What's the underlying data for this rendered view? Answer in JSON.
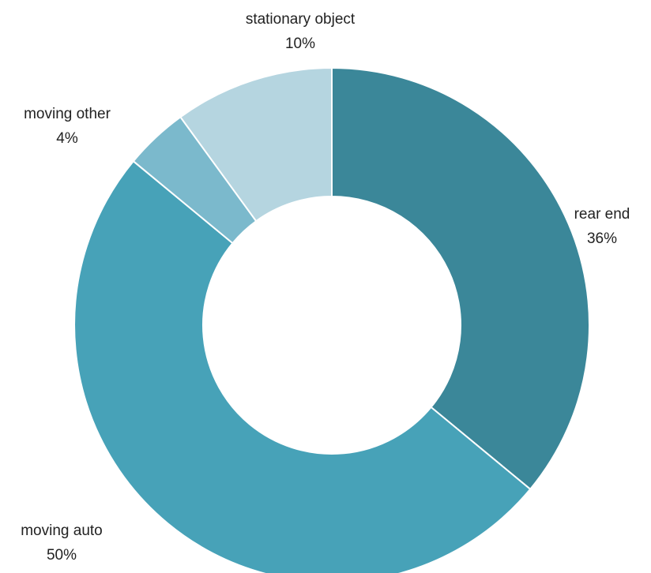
{
  "chart_data": {
    "type": "pie",
    "subtype": "donut",
    "title": "",
    "start_angle_deg": 0,
    "direction": "clockwise",
    "slices": [
      {
        "label": "rear end",
        "value": 36,
        "display": "36%",
        "color": "#3b8799"
      },
      {
        "label": "moving auto",
        "value": 50,
        "display": "50%",
        "color": "#47a2b8"
      },
      {
        "label": "moving other",
        "value": 4,
        "display": "4%",
        "color": "#7bb9cc"
      },
      {
        "label": "stationary object",
        "value": 10,
        "display": "10%",
        "color": "#b5d5e0"
      }
    ]
  }
}
